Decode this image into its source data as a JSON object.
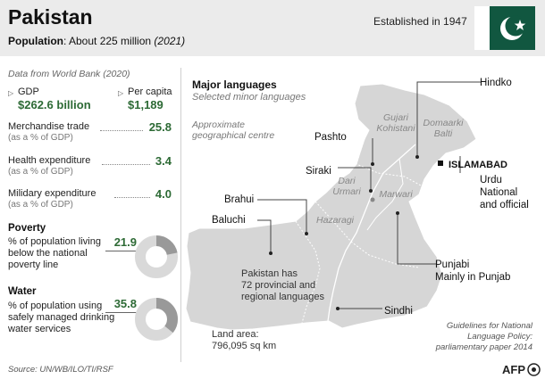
{
  "header": {
    "title": "Pakistan",
    "population_label": "Population",
    "population_value": ": About 225 million ",
    "population_year": "(2021)",
    "established": "Established in 1947"
  },
  "left": {
    "data_source": "Data from World Bank (2020)",
    "gdp_label": "GDP",
    "gdp_value": "$262.6 billion",
    "percapita_label": "Per capita",
    "percapita_value": "$1,189",
    "merch_label": "Merchandise trade",
    "merch_sub": "(as a % of GDP)",
    "merch_value": "25.8",
    "health_label": "Health expenditure",
    "health_sub": "(as a % of GDP)",
    "health_value": "3.4",
    "military_label": "Milidary  expenditure",
    "military_sub": "(as a % of GDP)",
    "military_value": "4.0",
    "poverty_title": "Poverty",
    "poverty_text": "% of population living below the national poverty line",
    "poverty_value": "21.9",
    "poverty_fraction": 0.219,
    "water_title": "Water",
    "water_text": "% of population using safely managed drinking water services",
    "water_value": "35.8",
    "water_fraction": 0.358,
    "source": "Source: UN/WB/ILO/TI/RSF"
  },
  "map": {
    "title": "Major languages",
    "subtitle": "Selected minor languages",
    "centre_note": "Approximate geographical centre",
    "capital": "ISLAMABAD",
    "languages": {
      "hindko": "Hindko",
      "pashto": "Pashto",
      "siraki": "Siraki",
      "brahui": "Brahui",
      "baluchi": "Baluchi",
      "urdu": "Urdu",
      "urdu_note1": "National",
      "urdu_note2": "and official",
      "punjabi": "Punjabi",
      "punjabi_note": "Mainly in Punjab",
      "sindhi": "Sindhi"
    },
    "minor": {
      "gujari": "Gujari",
      "kohistani": "Kohistani",
      "domaarki": "Domaarki",
      "balti": "Balti",
      "dari": "Dari",
      "urmari": "Urmari",
      "marwari": "Marwari",
      "hazaragi": "Hazaragi"
    },
    "regional_note1": "Pakistan has",
    "regional_note2": "72 provincial and",
    "regional_note3": "regional languages",
    "land_label": "Land area:",
    "land_value": "796,095 sq km",
    "guidelines1": "Guidelines for  National",
    "guidelines2": "Language Policy:",
    "guidelines3": "parliamentary paper 2014",
    "agency": "AFP"
  },
  "colors": {
    "green": "#2d6a35",
    "flag_green": "#115740",
    "map_grey": "#d6d6d6",
    "donut_grey": "#d9d9d9"
  }
}
